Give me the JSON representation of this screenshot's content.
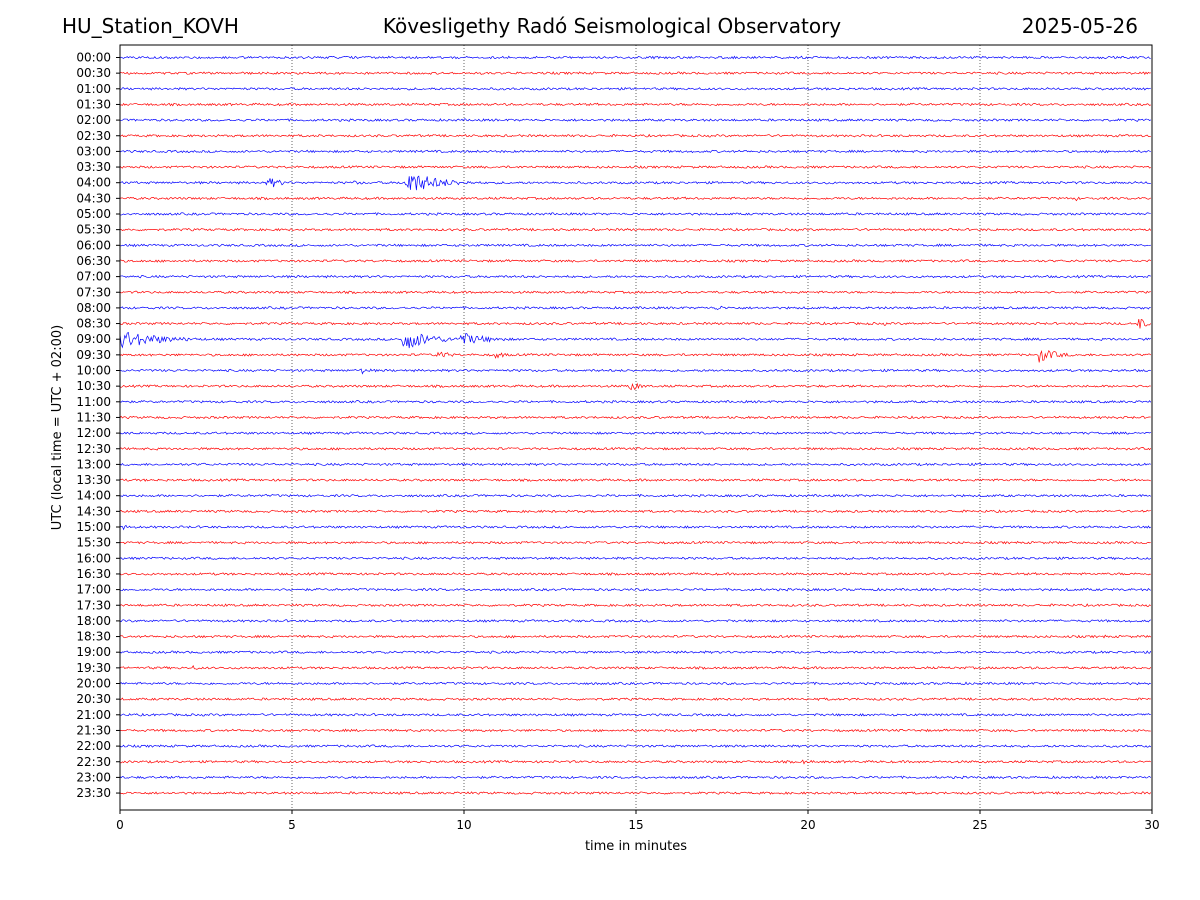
{
  "header": {
    "station": "HU_Station_KOVH",
    "observatory": "Kövesligethy Radó Seismological Observatory",
    "date": "2025-05-26"
  },
  "chart_data": {
    "type": "line",
    "title": "Kövesligethy Radó Seismological Observatory",
    "xlabel": "time in minutes",
    "ylabel": "UTC (local time = UTC + 02:00)",
    "xlim": [
      0,
      30
    ],
    "x_ticks": [
      0,
      5,
      10,
      15,
      20,
      25,
      30
    ],
    "grid": "vertical dotted",
    "colors": [
      "#0000ff",
      "#ff0000"
    ],
    "series": [
      {
        "label": "00:00",
        "events": []
      },
      {
        "label": "00:30",
        "events": []
      },
      {
        "label": "01:00",
        "events": []
      },
      {
        "label": "01:30",
        "events": []
      },
      {
        "label": "02:00",
        "events": []
      },
      {
        "label": "02:30",
        "events": [
          {
            "minute": 5.7,
            "amplitude": 1.5,
            "duration": 1.0
          },
          {
            "minute": 16.0,
            "amplitude": 1.5,
            "duration": 0.3
          }
        ]
      },
      {
        "label": "03:00",
        "events": []
      },
      {
        "label": "03:30",
        "events": [
          {
            "minute": 16.0,
            "amplitude": 1.2,
            "duration": 0.3
          }
        ]
      },
      {
        "label": "04:00",
        "events": [
          {
            "minute": 4.3,
            "amplitude": 7,
            "duration": 0.8
          },
          {
            "minute": 6.8,
            "amplitude": 2,
            "duration": 1.5
          },
          {
            "minute": 8.3,
            "amplitude": 13,
            "duration": 2.0
          },
          {
            "minute": 20.5,
            "amplitude": 2,
            "duration": 0.3
          }
        ]
      },
      {
        "label": "04:30",
        "events": [
          {
            "minute": 27.8,
            "amplitude": 2.5,
            "duration": 0.3
          }
        ]
      },
      {
        "label": "05:00",
        "events": []
      },
      {
        "label": "05:30",
        "events": [
          {
            "minute": 2.0,
            "amplitude": 2,
            "duration": 0.5
          }
        ]
      },
      {
        "label": "06:00",
        "events": []
      },
      {
        "label": "06:30",
        "events": [
          {
            "minute": 26.5,
            "amplitude": 2,
            "duration": 0.4
          }
        ]
      },
      {
        "label": "07:00",
        "events": []
      },
      {
        "label": "07:30",
        "events": []
      },
      {
        "label": "08:00",
        "events": [
          {
            "minute": 17.3,
            "amplitude": 3,
            "duration": 0.8
          }
        ]
      },
      {
        "label": "08:30",
        "events": [
          {
            "minute": 22.2,
            "amplitude": 2,
            "duration": 0.8
          },
          {
            "minute": 29.6,
            "amplitude": 9,
            "duration": 0.4
          }
        ]
      },
      {
        "label": "09:00",
        "events": [
          {
            "minute": 0.0,
            "amplitude": 10,
            "duration": 2.5
          },
          {
            "minute": 8.2,
            "amplitude": 12,
            "duration": 1.8
          },
          {
            "minute": 9.9,
            "amplitude": 7,
            "duration": 1.8
          }
        ]
      },
      {
        "label": "09:30",
        "events": [
          {
            "minute": 9.2,
            "amplitude": 5,
            "duration": 0.9
          },
          {
            "minute": 10.9,
            "amplitude": 4,
            "duration": 0.8
          },
          {
            "minute": 26.7,
            "amplitude": 8,
            "duration": 1.2
          }
        ]
      },
      {
        "label": "10:00",
        "events": [
          {
            "minute": 7.0,
            "amplitude": 4,
            "duration": 0.7
          }
        ]
      },
      {
        "label": "10:30",
        "events": [
          {
            "minute": 14.8,
            "amplitude": 6,
            "duration": 0.7
          }
        ]
      },
      {
        "label": "11:00",
        "events": [
          {
            "minute": 0.0,
            "amplitude": 3,
            "duration": 0.4
          },
          {
            "minute": 6.0,
            "amplitude": 2,
            "duration": 0.3
          }
        ]
      },
      {
        "label": "11:30",
        "events": []
      },
      {
        "label": "12:00",
        "events": []
      },
      {
        "label": "12:30",
        "events": []
      },
      {
        "label": "13:00",
        "events": [
          {
            "minute": 2.4,
            "amplitude": 2,
            "duration": 0.3
          }
        ]
      },
      {
        "label": "13:30",
        "events": []
      },
      {
        "label": "14:00",
        "events": []
      },
      {
        "label": "14:30",
        "events": [
          {
            "minute": 12.7,
            "amplitude": 2,
            "duration": 0.1
          }
        ]
      },
      {
        "label": "15:00",
        "events": [
          {
            "minute": 0.1,
            "amplitude": 3,
            "duration": 0.4
          },
          {
            "minute": 7.2,
            "amplitude": 2,
            "duration": 0.3
          }
        ]
      },
      {
        "label": "15:30",
        "events": []
      },
      {
        "label": "16:00",
        "events": []
      },
      {
        "label": "16:30",
        "events": [
          {
            "minute": 23.0,
            "amplitude": 2,
            "duration": 0.2
          },
          {
            "minute": 29.9,
            "amplitude": 3,
            "duration": 0.2
          }
        ]
      },
      {
        "label": "17:00",
        "events": []
      },
      {
        "label": "17:30",
        "events": []
      },
      {
        "label": "18:00",
        "events": []
      },
      {
        "label": "18:30",
        "events": [
          {
            "minute": 28.6,
            "amplitude": 2,
            "duration": 0.3
          }
        ]
      },
      {
        "label": "19:00",
        "events": [
          {
            "minute": 7.7,
            "amplitude": 2,
            "duration": 0.3
          }
        ]
      },
      {
        "label": "19:30",
        "events": [
          {
            "minute": 2.1,
            "amplitude": 2.5,
            "duration": 0.8
          }
        ]
      },
      {
        "label": "20:00",
        "events": []
      },
      {
        "label": "20:30",
        "events": []
      },
      {
        "label": "21:00",
        "events": []
      },
      {
        "label": "21:30",
        "events": []
      },
      {
        "label": "22:00",
        "events": []
      },
      {
        "label": "22:30",
        "events": [
          {
            "minute": 19.8,
            "amplitude": 2.5,
            "duration": 1.0
          }
        ]
      },
      {
        "label": "23:00",
        "events": []
      },
      {
        "label": "23:30",
        "events": []
      }
    ]
  }
}
